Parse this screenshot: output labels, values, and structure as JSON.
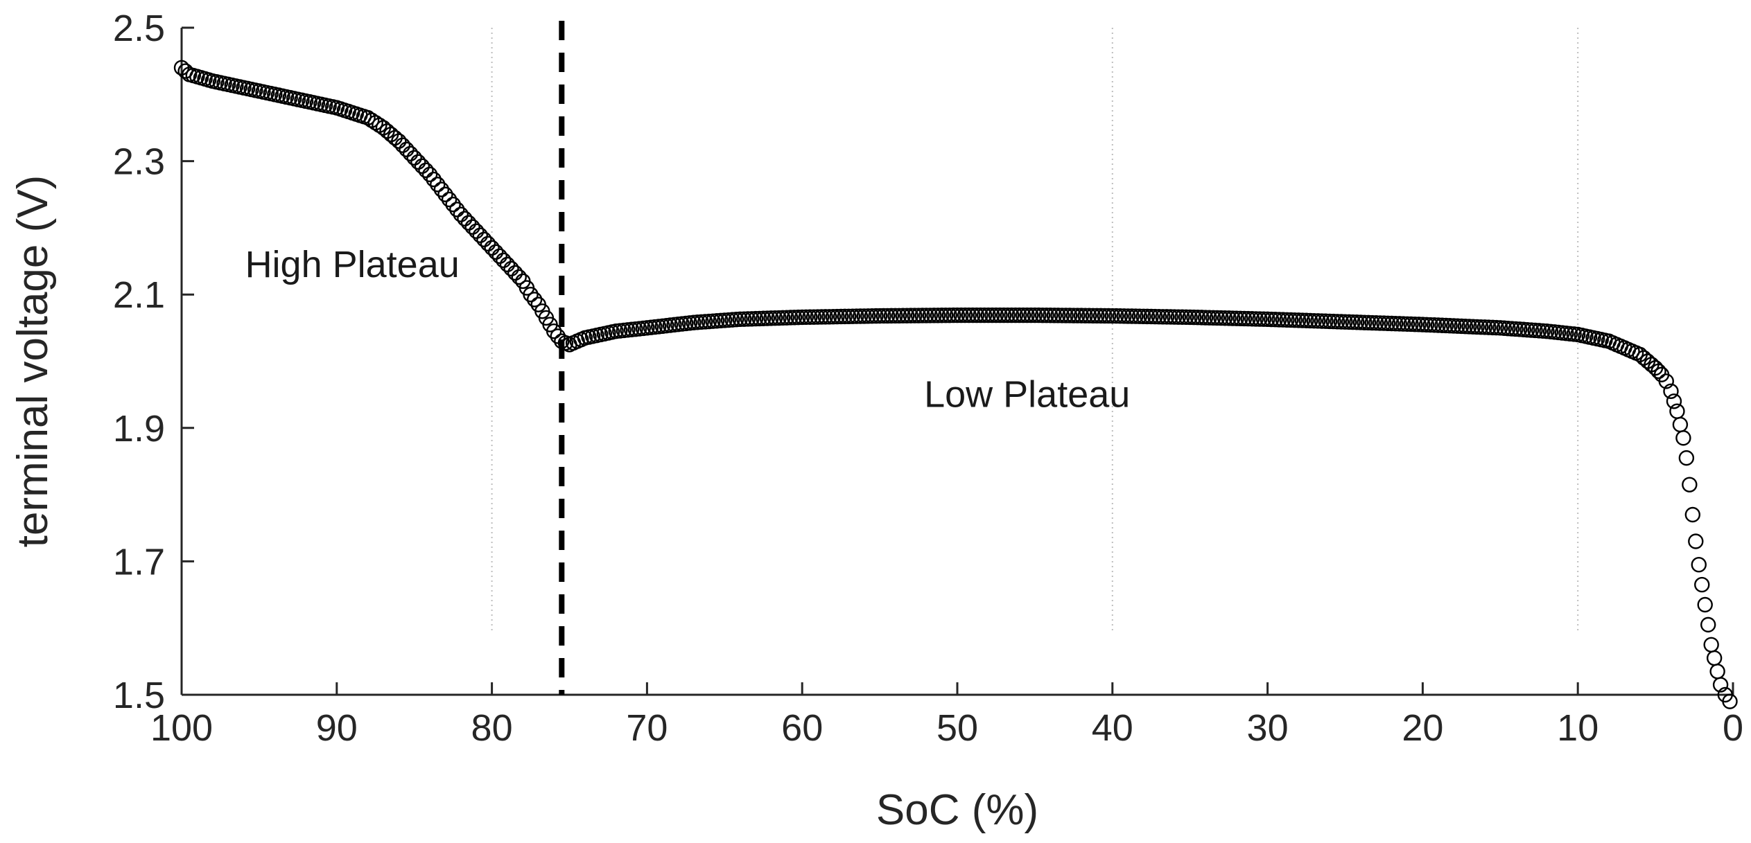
{
  "chart_data": {
    "type": "scatter",
    "title": "",
    "xlabel": "SoC (%)",
    "ylabel": "terminal voltage (V)",
    "xlim": [
      100,
      0
    ],
    "x_reversed": true,
    "ylim": [
      1.5,
      2.5
    ],
    "x_ticks": [
      100,
      90,
      80,
      70,
      60,
      50,
      40,
      30,
      20,
      10,
      0
    ],
    "x_tick_labels": [
      "100",
      "90",
      "80",
      "70",
      "60",
      "50",
      "40",
      "30",
      "20",
      "10",
      "0"
    ],
    "y_ticks": [
      1.5,
      1.7,
      1.9,
      2.1,
      2.3,
      2.5
    ],
    "y_tick_labels": [
      "1.5",
      "1.7",
      "1.9",
      "2.1",
      "2.3",
      "2.5"
    ],
    "vertical_gridlines_at": [
      80,
      40,
      10
    ],
    "grid": "dotted vertical",
    "marker": "open circle",
    "marker_color": "#000000",
    "series": [
      {
        "name": "terminal voltage",
        "x": [
          100,
          99.5,
          98,
          96,
          94,
          92,
          90,
          88,
          87,
          86,
          85,
          84,
          83,
          82,
          81,
          80,
          79,
          78,
          77.5,
          77,
          76.5,
          76,
          75.5,
          75,
          74,
          73,
          72,
          70,
          67,
          64,
          60,
          55,
          50,
          45,
          40,
          35,
          30,
          25,
          20,
          15,
          12,
          10,
          8,
          7,
          6,
          5.5,
          5,
          4.6,
          4.3,
          4.0,
          3.8,
          3.6,
          3.4,
          3.2,
          3.0,
          2.8,
          2.6,
          2.4,
          2.2,
          2.0,
          1.8,
          1.6,
          1.4,
          1.2,
          1.0,
          0.8,
          0.5,
          0.2
        ],
        "values": [
          2.44,
          2.43,
          2.42,
          2.41,
          2.4,
          2.39,
          2.38,
          2.365,
          2.35,
          2.33,
          2.305,
          2.28,
          2.25,
          2.22,
          2.195,
          2.17,
          2.145,
          2.12,
          2.1,
          2.085,
          2.065,
          2.045,
          2.03,
          2.025,
          2.035,
          2.04,
          2.045,
          2.05,
          2.058,
          2.063,
          2.066,
          2.068,
          2.069,
          2.069,
          2.068,
          2.066,
          2.063,
          2.059,
          2.055,
          2.05,
          2.045,
          2.04,
          2.03,
          2.02,
          2.01,
          2.0,
          1.99,
          1.98,
          1.97,
          1.955,
          1.94,
          1.925,
          1.905,
          1.885,
          1.855,
          1.815,
          1.77,
          1.73,
          1.695,
          1.665,
          1.635,
          1.605,
          1.575,
          1.555,
          1.535,
          1.515,
          1.5,
          1.49
        ]
      }
    ],
    "reference_line": {
      "x": 75.5,
      "style": "dashed",
      "color": "#000000"
    },
    "annotations": [
      {
        "text": "High Plateau",
        "x": 89,
        "y": 2.145
      },
      {
        "text": "Low Plateau",
        "x": 45.5,
        "y": 1.95
      }
    ]
  }
}
